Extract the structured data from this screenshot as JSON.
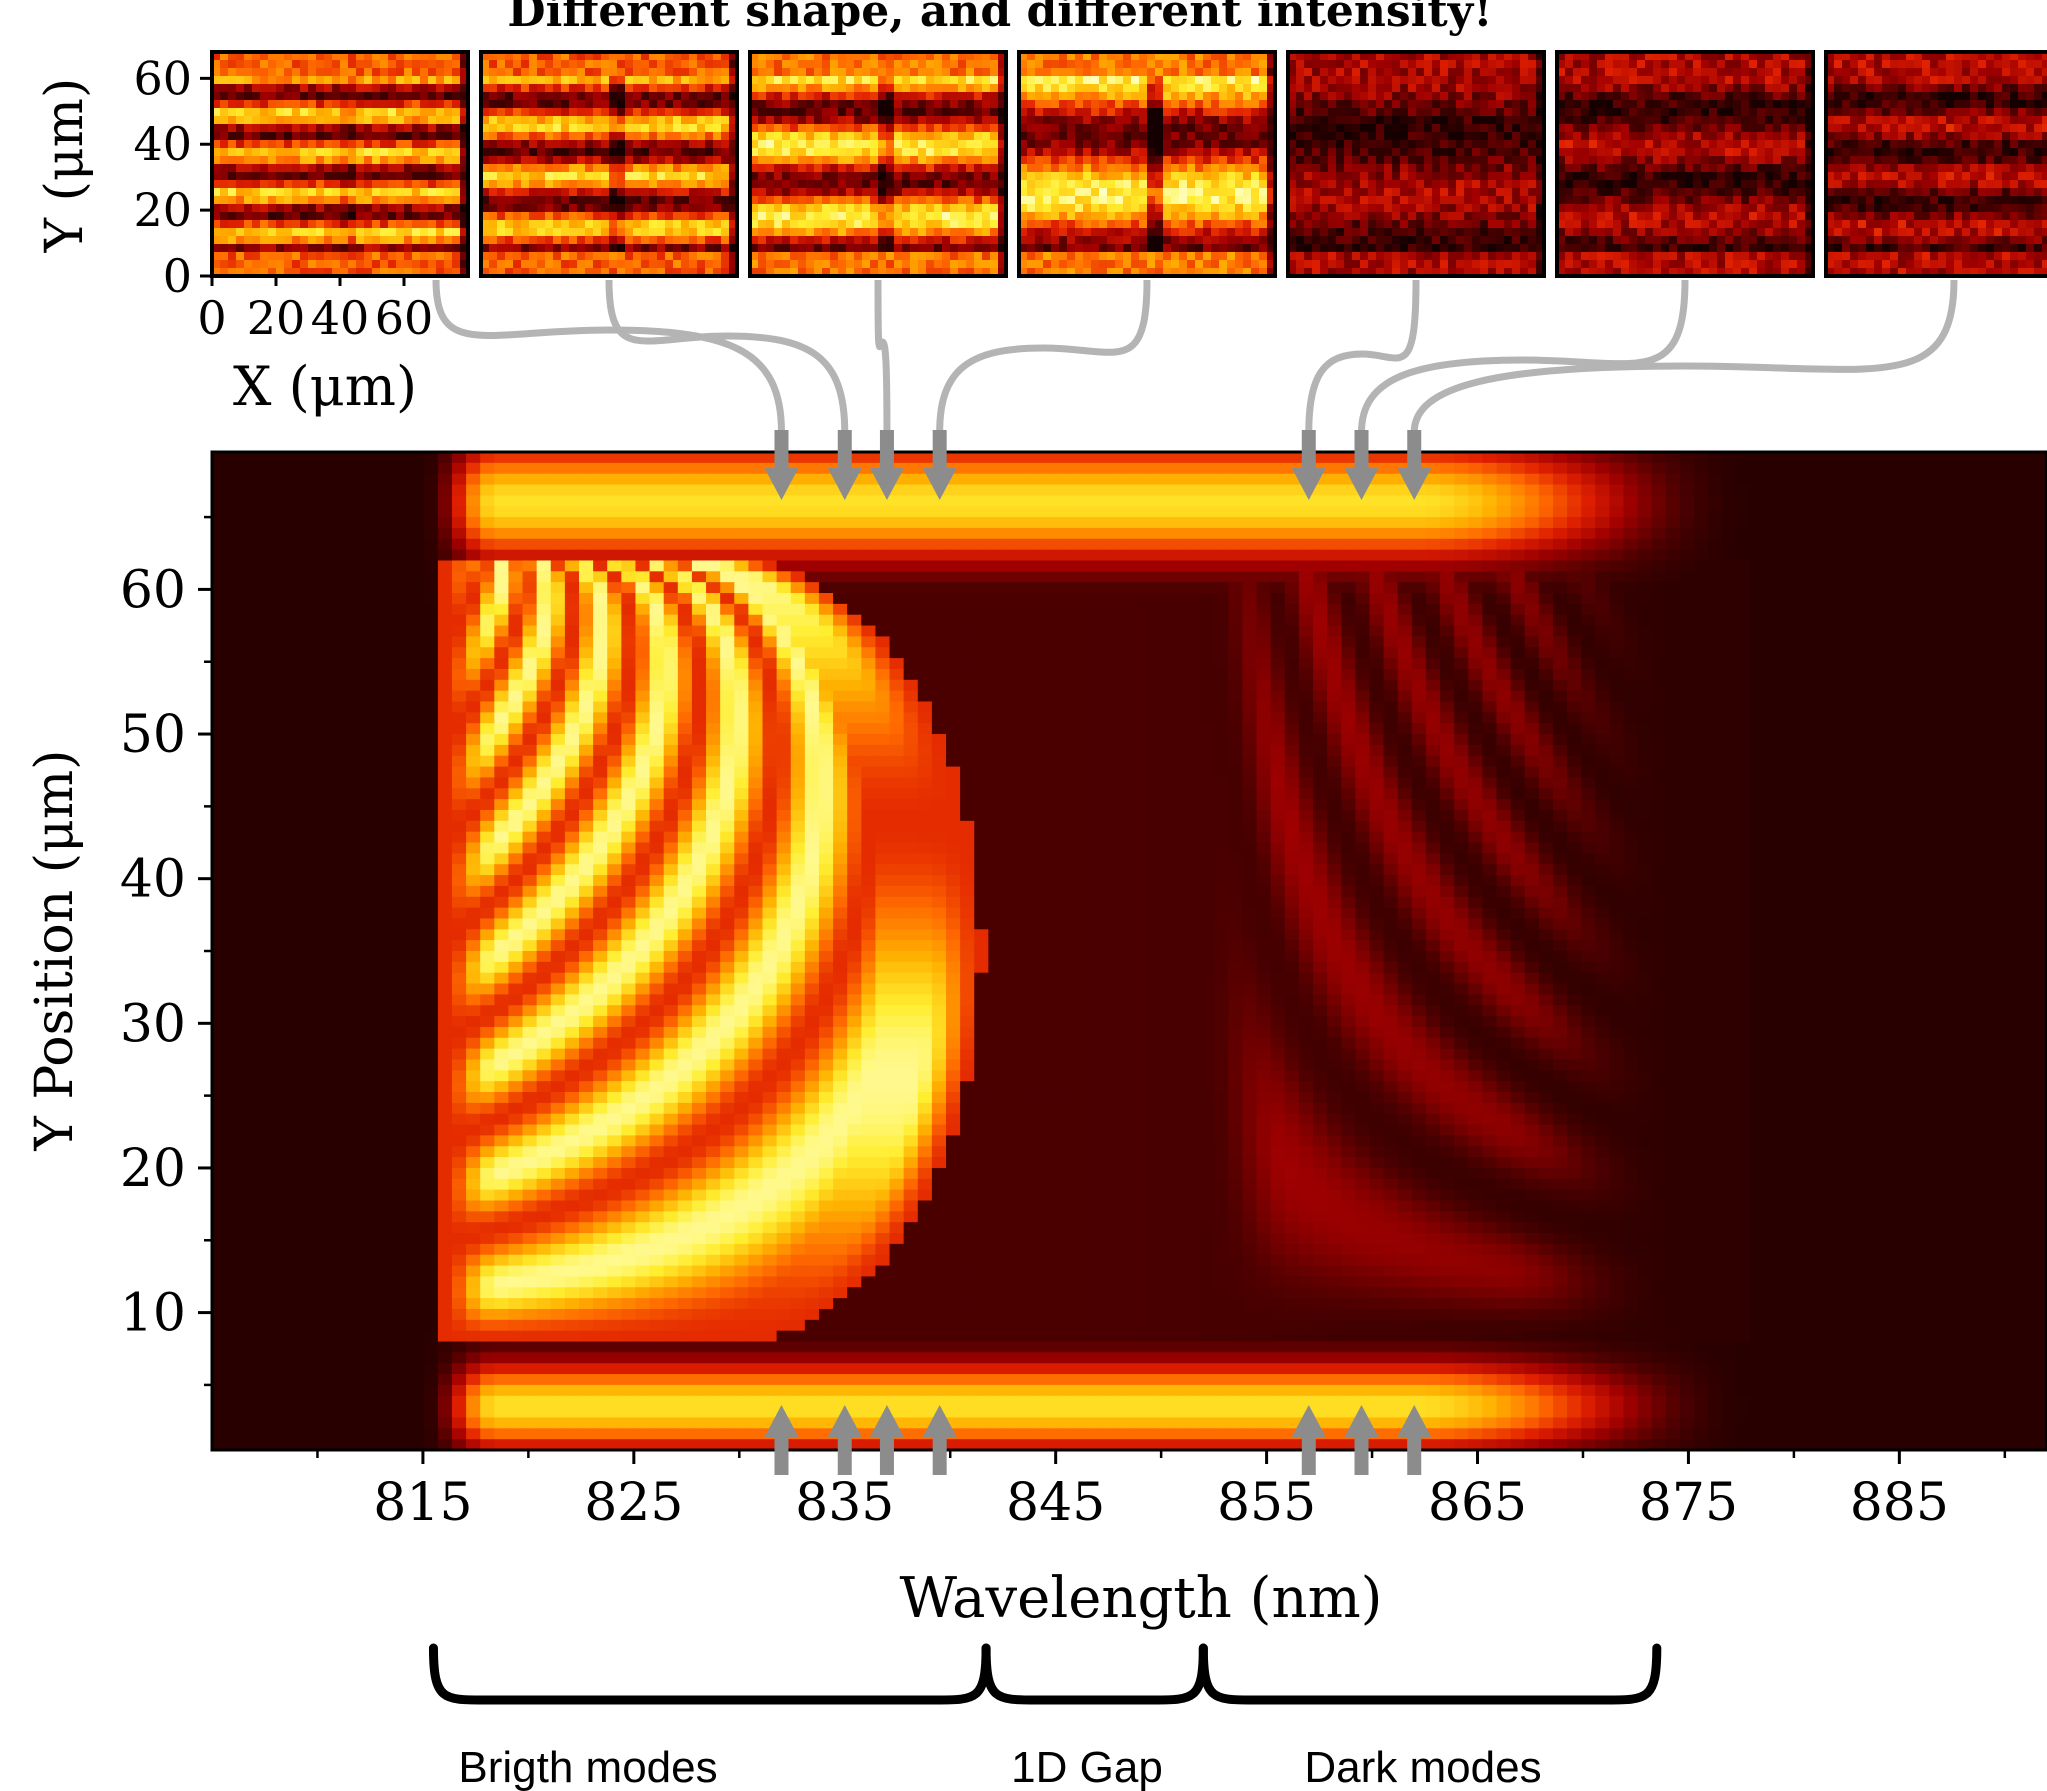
{
  "chart_data": {
    "type": "heatmap",
    "title": "Different shape, and different intensity!",
    "colormap": [
      "#140000",
      "#500000",
      "#a00000",
      "#e02000",
      "#ff6a00",
      "#ffb000",
      "#ffee30",
      "#ffffc0"
    ],
    "main": {
      "xlabel": "Wavelength (nm)",
      "ylabel": "Y Position (μm)",
      "xlim": [
        805,
        892
      ],
      "ylim": [
        0.5,
        69.5
      ],
      "xticks": [
        815,
        825,
        835,
        845,
        855,
        865,
        875,
        885
      ],
      "xtick_labels": [
        "815",
        "825",
        "835",
        "845",
        "855",
        "865",
        "875",
        "885"
      ],
      "yticks": [
        10,
        20,
        30,
        40,
        50,
        60
      ],
      "ytick_labels": [
        "10",
        "20",
        "30",
        "40",
        "50",
        "60"
      ],
      "regions": {
        "bright_modes_nm": [
          816,
          842
        ],
        "gap_nm": [
          842,
          852
        ],
        "dark_modes_nm": [
          852,
          875
        ],
        "guide_bottom_um": 8,
        "guide_top_um": 62
      },
      "arrow_wavelengths_nm": [
        832,
        835,
        837,
        839.5,
        857,
        859.5,
        862
      ]
    },
    "insets": {
      "xlabel": "X (μm)",
      "ylabel": "Y (μm)",
      "xlim": [
        0,
        80
      ],
      "ylim": [
        0,
        68
      ],
      "xticks": [
        0,
        20,
        40,
        60
      ],
      "xtick_labels": [
        "0",
        "20",
        "40",
        "60"
      ],
      "yticks": [
        0,
        20,
        40,
        60
      ],
      "ytick_labels": [
        "0",
        "20",
        "40",
        "60"
      ],
      "panels": [
        {
          "wavelength_nm": 832,
          "stripes": 4,
          "intensity": 0.8,
          "defect": 0.15
        },
        {
          "wavelength_nm": 835,
          "stripes": 3,
          "intensity": 0.8,
          "defect": 0.35
        },
        {
          "wavelength_nm": 837,
          "stripes": 2,
          "intensity": 0.88,
          "defect": 0.35
        },
        {
          "wavelength_nm": 839.5,
          "stripes": 1,
          "intensity": 0.9,
          "defect": 0.6
        },
        {
          "wavelength_nm": 857,
          "stripes": 1,
          "intensity": 0.32,
          "defect": 0.0
        },
        {
          "wavelength_nm": 859.5,
          "stripes": 2,
          "intensity": 0.34,
          "defect": 0.0
        },
        {
          "wavelength_nm": 862,
          "stripes": 3,
          "intensity": 0.36,
          "defect": 0.0
        }
      ]
    },
    "annotations": [
      {
        "text": "Brigth modes",
        "from_nm": 815.5,
        "to_nm": 841.7
      },
      {
        "text": "1D Gap",
        "from_nm": 841.7,
        "to_nm": 852
      },
      {
        "text": "Dark modes",
        "from_nm": 852,
        "to_nm": 873.5
      }
    ]
  }
}
